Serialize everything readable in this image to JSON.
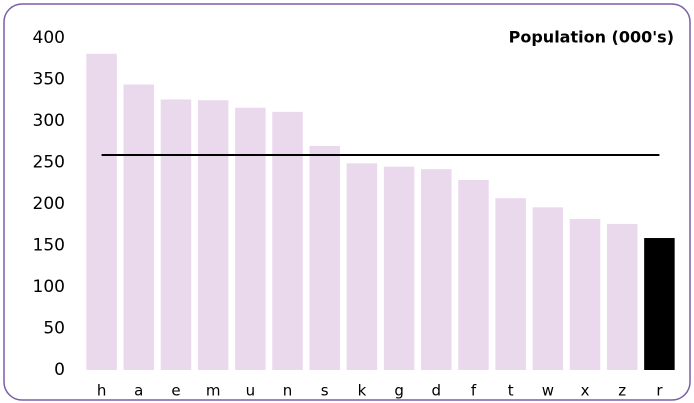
{
  "chart_data": {
    "type": "bar",
    "title": "Population (000's)",
    "categories": [
      "h",
      "a",
      "e",
      "m",
      "u",
      "n",
      "s",
      "k",
      "g",
      "d",
      "f",
      "t",
      "w",
      "x",
      "z",
      "r"
    ],
    "values": [
      381,
      344,
      326,
      325,
      316,
      311,
      270,
      249,
      245,
      242,
      229,
      207,
      196,
      182,
      176,
      159
    ],
    "colors": [
      "#ead9ec",
      "#ead9ec",
      "#ead9ec",
      "#ead9ec",
      "#ead9ec",
      "#ead9ec",
      "#ead9ec",
      "#ead9ec",
      "#ead9ec",
      "#ead9ec",
      "#ead9ec",
      "#ead9ec",
      "#ead9ec",
      "#ead9ec",
      "#ead9ec",
      "#000000"
    ],
    "reference_line": 259,
    "reference_color": "#000000",
    "ylim": [
      0,
      400
    ],
    "yticks": [
      0,
      50,
      100,
      150,
      200,
      250,
      300,
      350,
      400
    ],
    "grid": false
  }
}
